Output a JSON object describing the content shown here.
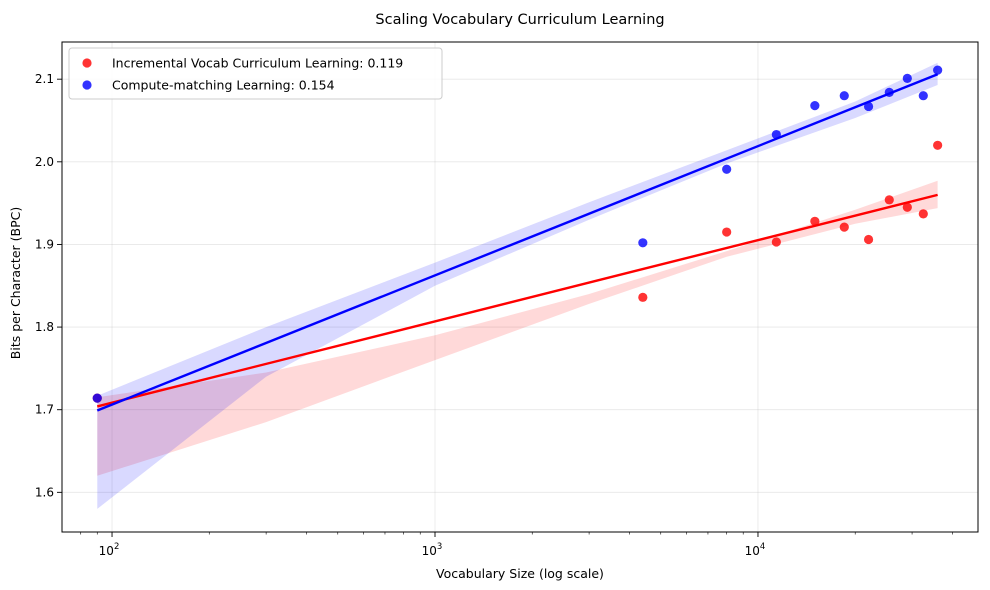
{
  "chart_data": {
    "type": "scatter",
    "title": "Scaling Vocabulary Curriculum Learning",
    "xlabel": "Vocabulary Size (log scale)",
    "ylabel": "Bits per Character (BPC)",
    "xscale": "log",
    "xlim": [
      70,
      48000
    ],
    "ylim": [
      1.552,
      2.145
    ],
    "xticks": [
      {
        "value": 100,
        "base": "10",
        "exp": "2"
      },
      {
        "value": 1000,
        "base": "10",
        "exp": "3"
      },
      {
        "value": 10000,
        "base": "10",
        "exp": "4"
      }
    ],
    "yticks": [
      1.6,
      1.7,
      1.8,
      1.9,
      2.0,
      2.1
    ],
    "ytick_labels": [
      "1.6",
      "1.7",
      "1.8",
      "1.9",
      "2.0",
      "2.1"
    ],
    "grid": true,
    "legend_position": "top-left",
    "series": [
      {
        "name": "Incremental Vocab Curriculum Learning: 0.119",
        "color": "#ff0000",
        "points": [
          {
            "x": 90,
            "y": 1.714
          },
          {
            "x": 4400,
            "y": 1.836
          },
          {
            "x": 8000,
            "y": 1.915
          },
          {
            "x": 11400,
            "y": 1.903
          },
          {
            "x": 15000,
            "y": 1.928
          },
          {
            "x": 18500,
            "y": 1.921
          },
          {
            "x": 22000,
            "y": 1.906
          },
          {
            "x": 25500,
            "y": 1.954
          },
          {
            "x": 29000,
            "y": 1.945
          },
          {
            "x": 32500,
            "y": 1.937
          },
          {
            "x": 36000,
            "y": 2.02
          }
        ],
        "fit_line": [
          {
            "x": 90,
            "y": 1.704
          },
          {
            "x": 36000,
            "y": 1.96
          }
        ],
        "band_upper": [
          {
            "x": 90,
            "y": 1.715
          },
          {
            "x": 300,
            "y": 1.745
          },
          {
            "x": 1000,
            "y": 1.79
          },
          {
            "x": 3000,
            "y": 1.84
          },
          {
            "x": 8000,
            "y": 1.892
          },
          {
            "x": 20000,
            "y": 1.942
          },
          {
            "x": 36000,
            "y": 1.977
          }
        ],
        "band_lower": [
          {
            "x": 90,
            "y": 1.62
          },
          {
            "x": 300,
            "y": 1.685
          },
          {
            "x": 1000,
            "y": 1.76
          },
          {
            "x": 3000,
            "y": 1.828
          },
          {
            "x": 8000,
            "y": 1.885
          },
          {
            "x": 20000,
            "y": 1.925
          },
          {
            "x": 36000,
            "y": 1.944
          }
        ]
      },
      {
        "name": "Compute-matching Learning: 0.154",
        "color": "#0000ff",
        "points": [
          {
            "x": 90,
            "y": 1.714
          },
          {
            "x": 4400,
            "y": 1.902
          },
          {
            "x": 8000,
            "y": 1.991
          },
          {
            "x": 11400,
            "y": 2.033
          },
          {
            "x": 15000,
            "y": 2.068
          },
          {
            "x": 18500,
            "y": 2.08
          },
          {
            "x": 22000,
            "y": 2.067
          },
          {
            "x": 25500,
            "y": 2.084
          },
          {
            "x": 29000,
            "y": 2.101
          },
          {
            "x": 32500,
            "y": 2.08
          },
          {
            "x": 36000,
            "y": 2.111
          }
        ],
        "fit_line": [
          {
            "x": 90,
            "y": 1.699
          },
          {
            "x": 36000,
            "y": 2.106
          }
        ],
        "band_upper": [
          {
            "x": 90,
            "y": 1.717
          },
          {
            "x": 300,
            "y": 1.8
          },
          {
            "x": 1000,
            "y": 1.878
          },
          {
            "x": 3000,
            "y": 1.951
          },
          {
            "x": 8000,
            "y": 2.014
          },
          {
            "x": 20000,
            "y": 2.073
          },
          {
            "x": 36000,
            "y": 2.12
          }
        ],
        "band_lower": [
          {
            "x": 90,
            "y": 1.58
          },
          {
            "x": 300,
            "y": 1.74
          },
          {
            "x": 1000,
            "y": 1.85
          },
          {
            "x": 3000,
            "y": 1.93
          },
          {
            "x": 8000,
            "y": 1.998
          },
          {
            "x": 20000,
            "y": 2.053
          },
          {
            "x": 36000,
            "y": 2.093
          }
        ]
      }
    ]
  }
}
